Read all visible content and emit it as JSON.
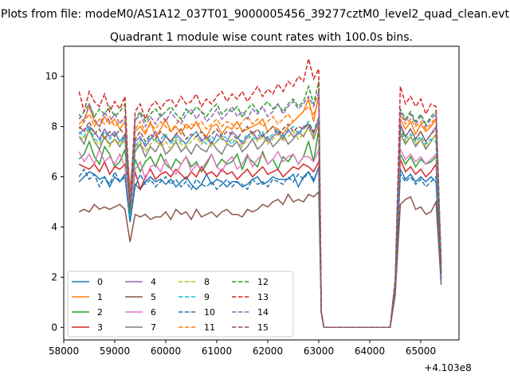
{
  "figure": {
    "suptitle": "Plots from file: modeM0/AS1A12_037T01_9000005456_39277cztM0_level2_quad_clean.evt"
  },
  "chart_data": {
    "type": "line",
    "title": "Quadrant 1 module wise count rates with 100.0s bins.",
    "xlabel": "",
    "ylabel": "",
    "x_offset_label": "+4.103e8",
    "xlim": [
      58000,
      65750
    ],
    "ylim": [
      -0.5,
      11.2
    ],
    "x_ticks": [
      58000,
      59000,
      60000,
      61000,
      62000,
      63000,
      64000,
      65000
    ],
    "x_tick_labels": [
      "58000",
      "59000",
      "60000",
      "61000",
      "62000",
      "63000",
      "64000",
      "65000"
    ],
    "y_ticks": [
      0,
      2,
      4,
      6,
      8,
      10
    ],
    "y_tick_labels": [
      "0",
      "2",
      "4",
      "6",
      "8",
      "10"
    ],
    "grid": false,
    "legend_position": "lower-left",
    "legend_columns": 4,
    "segments": [
      {
        "x_start": 58300,
        "x_end": 63000,
        "n": 48
      },
      {
        "x_start": 63100,
        "x_end": 64400,
        "n": 0,
        "value": 0
      },
      {
        "x_start": 64500,
        "x_end": 65400,
        "n": 10
      }
    ],
    "series": [
      {
        "name": "0",
        "color": "#1f77b4",
        "dash": "solid",
        "seg1": [
          5.8,
          6.0,
          6.2,
          6.1,
          5.9,
          6.0,
          5.6,
          6.0,
          5.8,
          6.1,
          4.2,
          5.7,
          5.5,
          5.8,
          6.0,
          5.8,
          5.9,
          5.7,
          5.9,
          5.6,
          5.8,
          6.0,
          5.7,
          5.5,
          5.7,
          6.1,
          5.7,
          5.9,
          5.8,
          5.6,
          5.8,
          5.8,
          5.6,
          5.7,
          5.9,
          6.0,
          5.7,
          5.8,
          6.0,
          5.9,
          5.9,
          5.9,
          6.1,
          5.6,
          6.0,
          6.2,
          5.8,
          6.4
        ],
        "seg3": [
          1.5,
          6.3,
          5.9,
          6.1,
          5.8,
          6.0,
          5.8,
          6.0,
          5.8,
          2.0
        ]
      },
      {
        "name": "1",
        "color": "#ff7f0e",
        "dash": "solid",
        "seg1": [
          8.1,
          8.3,
          8.8,
          8.2,
          8.0,
          8.4,
          8.1,
          8.3,
          7.9,
          8.2,
          5.5,
          7.8,
          8.0,
          7.7,
          8.2,
          7.6,
          7.9,
          8.3,
          7.8,
          8.0,
          7.7,
          8.1,
          7.9,
          8.2,
          7.8,
          7.6,
          8.0,
          8.1,
          7.7,
          8.0,
          7.9,
          8.2,
          7.8,
          7.9,
          8.0,
          8.1,
          8.3,
          7.8,
          8.0,
          7.9,
          7.7,
          8.0,
          8.2,
          8.4,
          8.6,
          9.1,
          8.2,
          9.3
        ],
        "seg3": [
          1.8,
          8.3,
          7.9,
          8.2,
          7.7,
          8.1,
          7.8,
          8.0,
          8.3,
          2.2
        ]
      },
      {
        "name": "2",
        "color": "#2ca02c",
        "dash": "solid",
        "seg1": [
          6.7,
          6.9,
          7.4,
          6.8,
          6.5,
          7.2,
          6.9,
          6.4,
          6.6,
          7.1,
          4.8,
          6.7,
          6.2,
          6.6,
          6.8,
          6.4,
          6.9,
          6.5,
          6.3,
          6.7,
          6.5,
          6.8,
          6.4,
          6.6,
          6.2,
          6.5,
          6.9,
          6.4,
          6.7,
          6.5,
          6.6,
          6.9,
          6.3,
          6.8,
          6.6,
          6.4,
          7.0,
          6.5,
          6.7,
          6.3,
          6.8,
          6.6,
          6.9,
          6.5,
          6.8,
          7.4,
          6.6,
          7.9
        ],
        "seg3": [
          1.6,
          6.9,
          6.5,
          6.8,
          6.4,
          6.7,
          6.5,
          6.6,
          6.8,
          2.1
        ]
      },
      {
        "name": "3",
        "color": "#d62728",
        "dash": "solid",
        "seg1": [
          6.5,
          6.4,
          6.3,
          6.5,
          6.2,
          6.6,
          6.1,
          6.4,
          6.3,
          6.5,
          4.5,
          6.2,
          5.5,
          6.0,
          6.3,
          5.9,
          6.1,
          6.2,
          6.0,
          6.3,
          6.1,
          5.9,
          6.2,
          6.0,
          6.4,
          6.1,
          6.2,
          6.0,
          6.3,
          6.1,
          6.2,
          5.9,
          6.1,
          6.3,
          6.0,
          6.2,
          6.4,
          6.1,
          6.2,
          6.3,
          6.0,
          6.2,
          6.4,
          6.3,
          6.5,
          6.4,
          6.2,
          6.6
        ],
        "seg3": [
          1.7,
          6.7,
          6.2,
          6.4,
          6.1,
          6.3,
          6.0,
          6.2,
          6.5,
          2.0
        ]
      },
      {
        "name": "4",
        "color": "#9467bd",
        "dash": "solid",
        "seg1": [
          7.7,
          7.9,
          8.0,
          7.8,
          7.5,
          7.9,
          7.6,
          7.8,
          7.4,
          7.7,
          5.0,
          7.4,
          7.6,
          7.2,
          7.5,
          7.8,
          7.3,
          7.6,
          7.4,
          7.7,
          7.5,
          7.3,
          7.6,
          7.8,
          7.4,
          7.6,
          7.3,
          7.7,
          7.5,
          7.4,
          7.8,
          7.6,
          7.3,
          7.6,
          7.8,
          7.5,
          7.7,
          7.4,
          7.6,
          7.8,
          7.5,
          7.9,
          7.6,
          7.7,
          8.0,
          8.1,
          7.7,
          8.3
        ],
        "seg3": [
          1.7,
          8.1,
          7.6,
          7.9,
          7.5,
          7.8,
          7.4,
          7.7,
          8.0,
          2.2
        ]
      },
      {
        "name": "5",
        "color": "#8c564b",
        "dash": "solid",
        "seg1": [
          4.6,
          4.7,
          4.6,
          4.9,
          4.7,
          4.8,
          4.7,
          4.8,
          4.9,
          4.7,
          3.4,
          4.5,
          4.4,
          4.5,
          4.3,
          4.4,
          4.4,
          4.6,
          4.3,
          4.7,
          4.5,
          4.6,
          4.3,
          4.7,
          4.4,
          4.5,
          4.6,
          4.4,
          4.6,
          4.7,
          4.5,
          4.5,
          4.4,
          4.7,
          4.6,
          4.7,
          4.9,
          4.8,
          5.0,
          5.1,
          4.9,
          5.3,
          5.0,
          5.1,
          5.0,
          5.3,
          5.2,
          5.4
        ],
        "seg3": [
          1.3,
          4.9,
          5.1,
          5.2,
          4.7,
          4.8,
          4.5,
          4.6,
          5.0,
          1.7
        ]
      },
      {
        "name": "6",
        "color": "#e377c2",
        "dash": "solid",
        "seg1": [
          7.0,
          6.6,
          6.9,
          6.5,
          7.1,
          6.6,
          6.8,
          6.5,
          6.9,
          6.4,
          4.6,
          6.3,
          6.6,
          5.9,
          6.4,
          6.5,
          6.2,
          6.7,
          6.3,
          6.1,
          6.5,
          6.8,
          6.2,
          6.5,
          6.3,
          6.6,
          6.9,
          6.4,
          6.2,
          6.6,
          6.8,
          6.3,
          6.5,
          6.9,
          6.4,
          6.7,
          6.9,
          6.5,
          6.7,
          7.0,
          6.6,
          6.8,
          6.9,
          6.5,
          6.8,
          6.8,
          6.6,
          7.1
        ],
        "seg3": [
          1.6,
          7.1,
          6.7,
          6.9,
          6.6,
          6.8,
          6.5,
          6.7,
          6.9,
          2.0
        ]
      },
      {
        "name": "7",
        "color": "#7f7f7f",
        "dash": "solid",
        "seg1": [
          7.6,
          7.3,
          7.9,
          7.4,
          7.1,
          7.6,
          7.3,
          7.5,
          7.2,
          7.6,
          4.9,
          7.0,
          7.3,
          6.8,
          7.2,
          7.0,
          7.4,
          6.9,
          7.1,
          7.4,
          7.0,
          7.2,
          6.9,
          7.3,
          7.1,
          7.0,
          7.4,
          7.1,
          6.9,
          7.3,
          7.2,
          7.4,
          7.0,
          7.2,
          7.5,
          7.1,
          7.3,
          7.6,
          7.2,
          7.4,
          7.7,
          7.3,
          7.5,
          7.8,
          7.6,
          8.0,
          7.5,
          8.1
        ],
        "seg3": [
          1.6,
          7.7,
          7.3,
          7.6,
          7.2,
          7.5,
          7.1,
          7.4,
          7.7,
          2.1
        ]
      },
      {
        "name": "8",
        "color": "#bcbd22",
        "dash": "dashed",
        "seg1": [
          7.6,
          7.5,
          7.8,
          7.4,
          7.3,
          7.6,
          7.2,
          7.5,
          7.3,
          7.4,
          4.5,
          7.1,
          7.4,
          7.0,
          7.3,
          7.5,
          7.2,
          7.4,
          7.1,
          7.5,
          7.3,
          7.2,
          7.4,
          7.6,
          7.3,
          7.5,
          7.2,
          7.4,
          7.6,
          7.3,
          7.5,
          7.4,
          7.2,
          7.5,
          7.7,
          7.4,
          7.6,
          7.3,
          7.5,
          7.7,
          7.4,
          7.6,
          7.8,
          7.5,
          7.7,
          7.9,
          7.6,
          8.0
        ],
        "seg3": [
          1.7,
          7.8,
          7.4,
          7.6,
          7.3,
          7.5,
          7.2,
          7.4,
          7.7,
          2.1
        ]
      },
      {
        "name": "9",
        "color": "#17becf",
        "dash": "dashed",
        "seg1": [
          7.8,
          7.6,
          8.0,
          7.5,
          7.4,
          7.8,
          7.5,
          7.7,
          7.4,
          7.6,
          4.4,
          7.2,
          7.5,
          7.3,
          7.6,
          7.4,
          7.5,
          7.7,
          7.3,
          7.6,
          7.4,
          7.3,
          7.6,
          7.8,
          7.5,
          7.3,
          7.6,
          7.4,
          7.7,
          7.5,
          7.3,
          7.6,
          7.4,
          7.7,
          7.5,
          7.6,
          7.8,
          7.5,
          7.7,
          7.9,
          7.6,
          7.8,
          8.0,
          7.7,
          7.9,
          8.2,
          7.8,
          8.4
        ],
        "seg3": [
          1.8,
          7.9,
          7.5,
          7.7,
          7.4,
          7.6,
          7.3,
          7.5,
          7.4,
          2.2
        ]
      },
      {
        "name": "10",
        "color": "#1f77b4",
        "dash": "dashed",
        "seg1": [
          6.0,
          6.3,
          5.9,
          6.1,
          5.6,
          6.0,
          5.7,
          6.2,
          5.8,
          6.0,
          4.2,
          5.6,
          6.1,
          5.7,
          5.9,
          5.6,
          5.8,
          6.0,
          5.7,
          5.9,
          5.6,
          5.8,
          5.5,
          5.9,
          5.7,
          5.6,
          5.8,
          5.5,
          5.7,
          5.9,
          5.6,
          5.8,
          5.7,
          5.5,
          5.9,
          5.7,
          5.8,
          5.6,
          5.9,
          5.8,
          5.7,
          6.0,
          5.8,
          6.1,
          5.9,
          6.2,
          5.9,
          6.3
        ],
        "seg3": [
          1.5,
          6.1,
          5.8,
          6.0,
          5.7,
          5.9,
          5.6,
          5.8,
          6.0,
          1.9
        ]
      },
      {
        "name": "11",
        "color": "#ff7f0e",
        "dash": "dashed",
        "seg1": [
          7.9,
          8.2,
          8.5,
          8.0,
          8.3,
          8.1,
          8.4,
          8.0,
          8.2,
          8.3,
          5.2,
          7.9,
          8.2,
          7.8,
          8.1,
          7.9,
          8.2,
          8.0,
          7.8,
          8.1,
          8.3,
          7.9,
          8.1,
          8.0,
          8.2,
          7.9,
          8.1,
          8.3,
          8.0,
          8.2,
          8.1,
          7.9,
          8.2,
          8.4,
          8.1,
          8.3,
          8.0,
          8.2,
          8.4,
          8.1,
          8.3,
          8.5,
          8.2,
          8.4,
          8.6,
          8.8,
          8.5,
          9.0
        ],
        "seg3": [
          1.8,
          8.5,
          8.1,
          8.3,
          8.0,
          8.2,
          7.9,
          8.1,
          8.4,
          2.3
        ]
      },
      {
        "name": "12",
        "color": "#2ca02c",
        "dash": "dashed",
        "seg1": [
          8.3,
          8.6,
          8.9,
          8.4,
          8.7,
          8.5,
          8.8,
          8.4,
          8.6,
          8.9,
          4.6,
          8.3,
          8.6,
          8.2,
          8.5,
          8.7,
          8.4,
          8.6,
          8.8,
          8.5,
          8.3,
          8.7,
          8.5,
          8.8,
          8.6,
          8.4,
          8.7,
          8.9,
          8.5,
          8.7,
          8.6,
          8.8,
          8.4,
          8.7,
          8.9,
          8.6,
          8.8,
          9.0,
          8.7,
          8.9,
          8.6,
          8.9,
          9.1,
          8.8,
          9.0,
          9.6,
          8.9,
          9.8
        ],
        "seg3": [
          1.9,
          8.7,
          8.3,
          8.6,
          8.2,
          8.5,
          8.1,
          8.4,
          8.6,
          2.5
        ]
      },
      {
        "name": "13",
        "color": "#d62728",
        "dash": "dashed",
        "seg1": [
          9.4,
          8.6,
          9.4,
          9.0,
          8.8,
          9.3,
          8.6,
          9.0,
          8.7,
          9.2,
          4.9,
          8.6,
          8.9,
          8.3,
          8.8,
          9.0,
          8.7,
          9.0,
          9.1,
          8.8,
          9.2,
          8.9,
          9.0,
          9.3,
          8.8,
          9.1,
          8.9,
          9.2,
          9.4,
          9.0,
          9.3,
          9.1,
          9.4,
          9.0,
          9.3,
          9.6,
          9.2,
          9.5,
          9.3,
          9.7,
          9.4,
          9.8,
          9.6,
          10.0,
          9.8,
          10.7,
          9.9,
          10.3
        ],
        "seg3": [
          1.9,
          9.6,
          8.9,
          9.2,
          8.8,
          9.1,
          8.5,
          8.9,
          8.8,
          2.6
        ]
      },
      {
        "name": "14",
        "color": "#9467bd",
        "dash": "dashed",
        "seg1": [
          8.5,
          8.2,
          8.9,
          8.3,
          8.0,
          8.6,
          8.2,
          8.5,
          8.1,
          8.4,
          5.0,
          8.2,
          8.5,
          8.0,
          8.4,
          8.1,
          8.5,
          8.2,
          8.6,
          8.3,
          8.1,
          8.5,
          8.7,
          8.3,
          8.6,
          8.2,
          8.4,
          8.7,
          8.3,
          8.5,
          8.8,
          8.4,
          8.6,
          8.3,
          8.7,
          8.5,
          8.8,
          8.4,
          8.6,
          8.9,
          8.5,
          8.8,
          9.0,
          8.7,
          8.9,
          9.2,
          8.8,
          9.4
        ],
        "seg3": [
          1.8,
          8.6,
          8.2,
          8.5,
          8.1,
          8.4,
          8.0,
          8.3,
          8.5,
          2.4
        ]
      },
      {
        "name": "15",
        "color": "#8c564b",
        "dash": "dashed",
        "seg1": [
          8.0,
          7.8,
          8.2,
          7.7,
          7.9,
          7.5,
          7.8,
          7.6,
          7.9,
          7.7,
          4.7,
          7.5,
          7.8,
          7.4,
          7.7,
          7.5,
          7.8,
          7.6,
          7.4,
          7.7,
          7.9,
          7.5,
          7.7,
          7.6,
          7.8,
          7.5,
          7.7,
          7.9,
          7.6,
          7.8,
          7.7,
          7.5,
          7.8,
          8.0,
          7.7,
          7.9,
          7.6,
          7.8,
          8.0,
          7.7,
          7.9,
          8.1,
          7.8,
          8.0,
          7.9,
          8.1,
          7.8,
          8.2
        ],
        "seg3": [
          1.7,
          8.0,
          7.6,
          7.9,
          7.5,
          7.8,
          7.4,
          7.7,
          7.9,
          2.3
        ]
      }
    ]
  }
}
